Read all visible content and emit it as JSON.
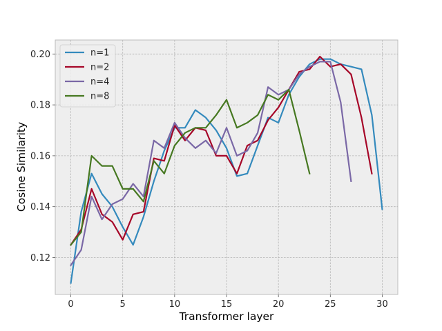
{
  "chart_data": {
    "type": "line",
    "title": "",
    "xlabel": "Transformer layer",
    "ylabel": "Cosine Similarity",
    "xlim": [
      -1.5,
      31.5
    ],
    "ylim": [
      0.1055,
      0.2055
    ],
    "xticks": [
      0,
      5,
      10,
      15,
      20,
      25,
      30
    ],
    "yticks": [
      0.12,
      0.14,
      0.16,
      0.18,
      0.2
    ],
    "xtick_labels": [
      "0",
      "5",
      "10",
      "15",
      "20",
      "25",
      "30"
    ],
    "ytick_labels": [
      "0.12",
      "0.14",
      "0.16",
      "0.18",
      "0.20"
    ],
    "grid": true,
    "legend_position": "top-left",
    "colors": [
      "#348abd",
      "#a60628",
      "#7a68a6",
      "#467821"
    ],
    "background": "#eeeeee",
    "series": [
      {
        "name": "n=1",
        "x": [
          0,
          1,
          2,
          3,
          4,
          5,
          6,
          7,
          8,
          9,
          10,
          11,
          12,
          13,
          14,
          15,
          16,
          17,
          18,
          19,
          20,
          21,
          22,
          23,
          24,
          25,
          26,
          27,
          28,
          29,
          30
        ],
        "values": [
          0.11,
          0.138,
          0.153,
          0.145,
          0.14,
          0.132,
          0.125,
          0.136,
          0.15,
          0.162,
          0.171,
          0.171,
          0.178,
          0.175,
          0.17,
          0.163,
          0.152,
          0.153,
          0.164,
          0.175,
          0.173,
          0.184,
          0.191,
          0.196,
          0.198,
          0.198,
          0.196,
          0.195,
          0.194,
          0.176,
          0.139
        ]
      },
      {
        "name": "n=2",
        "x": [
          0,
          1,
          2,
          3,
          4,
          5,
          6,
          7,
          8,
          9,
          10,
          11,
          12,
          13,
          14,
          15,
          16,
          17,
          18,
          19,
          20,
          21,
          22,
          23,
          24,
          25,
          26,
          27,
          28,
          29
        ],
        "values": [
          0.125,
          0.131,
          0.147,
          0.137,
          0.134,
          0.127,
          0.137,
          0.138,
          0.159,
          0.158,
          0.172,
          0.166,
          0.171,
          0.17,
          0.16,
          0.16,
          0.153,
          0.164,
          0.166,
          0.174,
          0.179,
          0.186,
          0.193,
          0.194,
          0.199,
          0.195,
          0.196,
          0.192,
          0.175,
          0.153
        ]
      },
      {
        "name": "n=4",
        "x": [
          0,
          1,
          2,
          3,
          4,
          5,
          6,
          7,
          8,
          9,
          10,
          11,
          12,
          13,
          14,
          15,
          16,
          17,
          18,
          19,
          20,
          21,
          22,
          23,
          24,
          25,
          26,
          27
        ],
        "values": [
          0.117,
          0.123,
          0.144,
          0.135,
          0.141,
          0.143,
          0.149,
          0.144,
          0.166,
          0.163,
          0.173,
          0.167,
          0.163,
          0.166,
          0.161,
          0.171,
          0.16,
          0.162,
          0.169,
          0.187,
          0.184,
          0.186,
          0.192,
          0.195,
          0.197,
          0.197,
          0.181,
          0.15
        ]
      },
      {
        "name": "n=8",
        "x": [
          0,
          1,
          2,
          3,
          4,
          5,
          6,
          7,
          8,
          9,
          10,
          11,
          12,
          13,
          14,
          15,
          16,
          17,
          18,
          19,
          20,
          21,
          22,
          23
        ],
        "values": [
          0.125,
          0.13,
          0.16,
          0.156,
          0.156,
          0.147,
          0.147,
          0.142,
          0.158,
          0.153,
          0.164,
          0.169,
          0.171,
          0.171,
          0.176,
          0.182,
          0.171,
          0.173,
          0.176,
          0.184,
          0.182,
          0.186,
          0.17,
          0.153
        ]
      }
    ]
  }
}
